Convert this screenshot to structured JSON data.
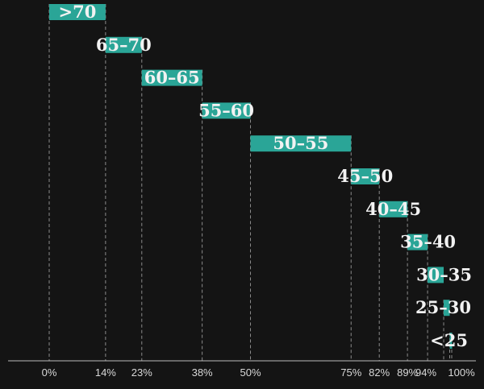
{
  "chart_data": {
    "type": "bar",
    "orientation": "horizontal-waterfall",
    "xlim": [
      0,
      100
    ],
    "x_ticks": [
      {
        "value": 0,
        "label": "0%"
      },
      {
        "value": 14,
        "label": "14%"
      },
      {
        "value": 23,
        "label": "23%"
      },
      {
        "value": 38,
        "label": "38%"
      },
      {
        "value": 50,
        "label": "50%"
      },
      {
        "value": 75,
        "label": "75%"
      },
      {
        "value": 82,
        "label": "82%"
      },
      {
        "value": 89,
        "label": "89%"
      },
      {
        "value": 94,
        "label": "94%"
      },
      {
        "value": 100,
        "label": "100%"
      }
    ],
    "categories": [
      ">70",
      "65–70",
      "60–65",
      "55–60",
      "50–55",
      "45–50",
      "40–45",
      "35–40",
      "30–35",
      "25–30",
      "<25"
    ],
    "segments": [
      {
        "label": ">70",
        "start": 0,
        "end": 14
      },
      {
        "label": "65–70",
        "start": 14,
        "end": 23
      },
      {
        "label": "60–65",
        "start": 23,
        "end": 38
      },
      {
        "label": "55–60",
        "start": 38,
        "end": 50
      },
      {
        "label": "50–55",
        "start": 50,
        "end": 75
      },
      {
        "label": "45–50",
        "start": 75,
        "end": 82
      },
      {
        "label": "40–45",
        "start": 82,
        "end": 89
      },
      {
        "label": "35–40",
        "start": 89,
        "end": 94
      },
      {
        "label": "30–35",
        "start": 94,
        "end": 98
      },
      {
        "label": "25–30",
        "start": 98,
        "end": 99.5
      },
      {
        "label": "<25",
        "start": 99.5,
        "end": 100
      }
    ],
    "colors": {
      "background": "#141414",
      "bar": "#2aa597",
      "label": "#f2f2f2",
      "guide": "#8a8a8a",
      "axis": "#bbbbbb",
      "tick_label": "#d8d8d8"
    },
    "grid": false,
    "legend": "none"
  }
}
